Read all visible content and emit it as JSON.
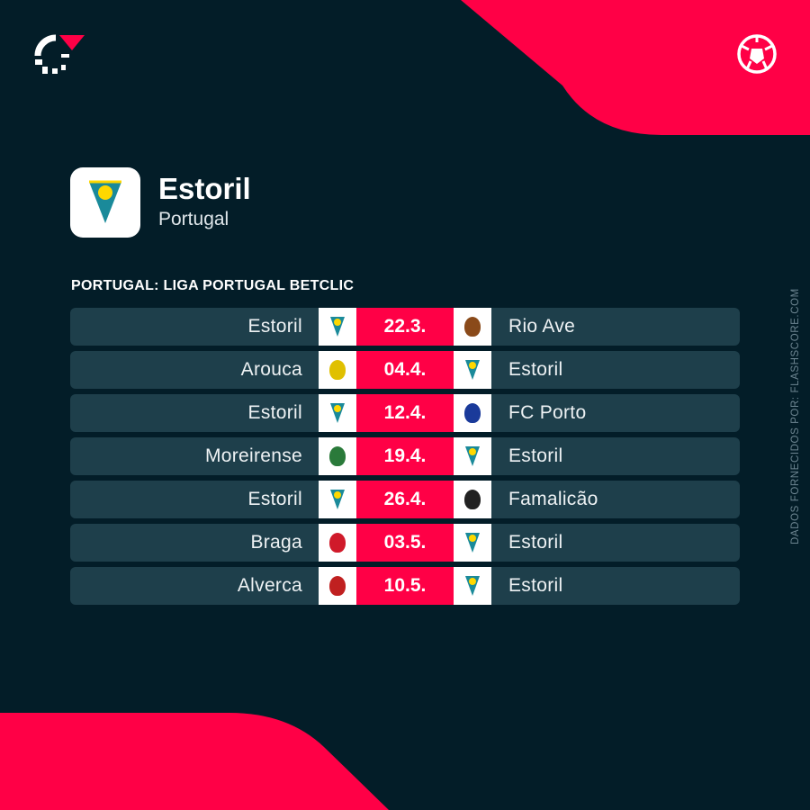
{
  "team": {
    "name": "Estoril",
    "country": "Portugal"
  },
  "league": "PORTUGAL: LIGA PORTUGAL BETCLIC",
  "credit": "DADOS FORNECIDOS POR: FLASHSCORE.COM",
  "colors": {
    "background": "#031d28",
    "accent": "#ff0046",
    "row": "#1e3f4b"
  },
  "icons": {
    "brand": "flashscore-logo",
    "sport": "soccer-ball-icon"
  },
  "matches": [
    {
      "home": "Estoril",
      "date": "22.3.",
      "away": "Rio Ave"
    },
    {
      "home": "Arouca",
      "date": "04.4.",
      "away": "Estoril"
    },
    {
      "home": "Estoril",
      "date": "12.4.",
      "away": "FC Porto"
    },
    {
      "home": "Moreirense",
      "date": "19.4.",
      "away": "Estoril"
    },
    {
      "home": "Estoril",
      "date": "26.4.",
      "away": "Famalicão"
    },
    {
      "home": "Braga",
      "date": "03.5.",
      "away": "Estoril"
    },
    {
      "home": "Alverca",
      "date": "10.5.",
      "away": "Estoril"
    }
  ]
}
